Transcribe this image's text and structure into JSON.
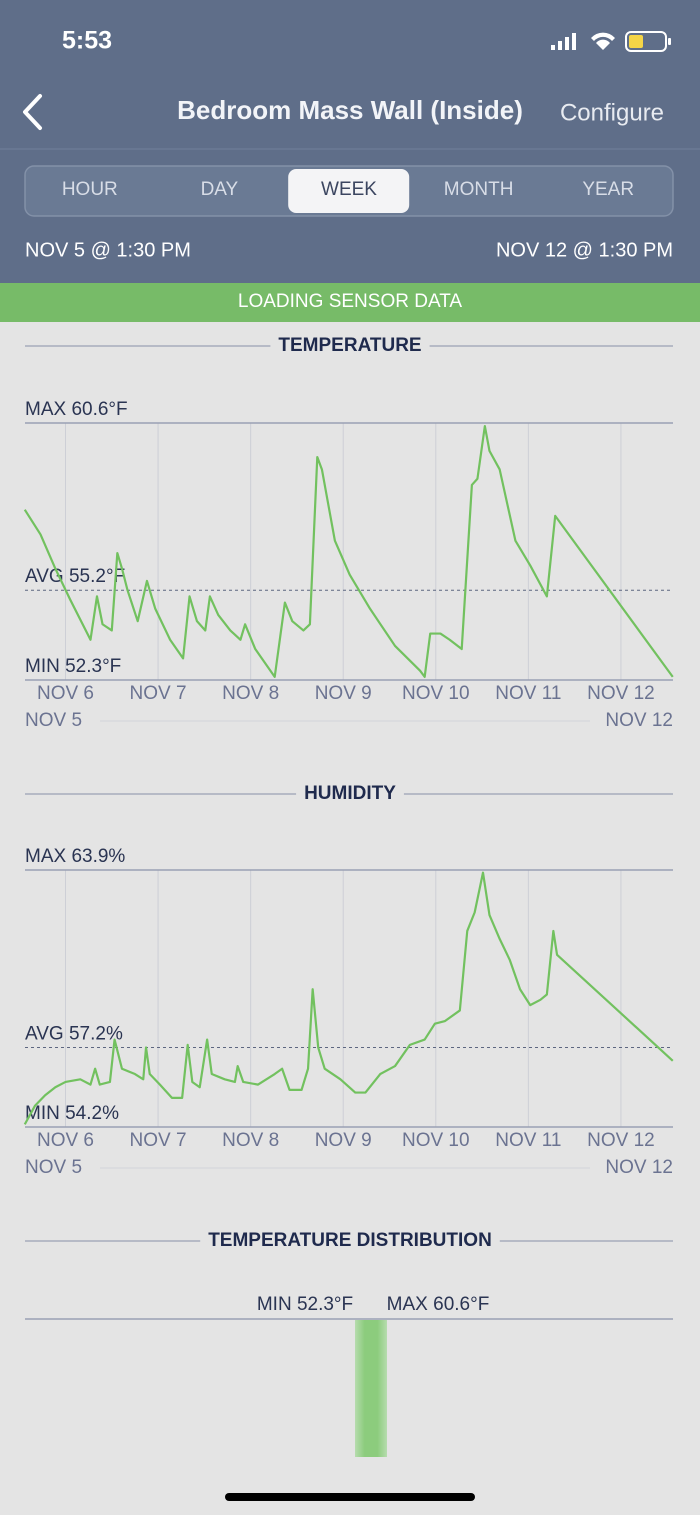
{
  "status_bar": {
    "time": "5:53"
  },
  "header": {
    "title": "Bedroom Mass Wall (Inside)",
    "action": "Configure"
  },
  "tabs": [
    "HOUR",
    "DAY",
    "WEEK",
    "MONTH",
    "YEAR"
  ],
  "selected_tab": 2,
  "range": {
    "start": "NOV 5 @ 1:30 PM",
    "end": "NOV 12 @ 1:30 PM"
  },
  "banner": "LOADING SENSOR DATA",
  "chart_data": [
    {
      "type": "line",
      "title": "TEMPERATURE",
      "color": "#72c15f",
      "x": [
        5.56,
        5.73,
        5.89,
        6.05,
        6.27,
        6.34,
        6.4,
        6.5,
        6.56,
        6.61,
        6.67,
        6.78,
        6.88,
        6.97,
        7.13,
        7.27,
        7.34,
        7.42,
        7.51,
        7.56,
        7.65,
        7.78,
        7.89,
        7.94,
        8.05,
        8.26,
        8.37,
        8.45,
        8.57,
        8.64,
        8.72,
        8.77,
        8.91,
        9.07,
        9.29,
        9.56,
        9.83,
        9.88,
        9.94,
        10.05,
        10.15,
        10.28,
        10.39,
        10.45,
        10.53,
        10.58,
        10.69,
        10.86,
        11.02,
        11.2,
        11.29,
        12.56
      ],
      "values": [
        57.8,
        57.0,
        55.9,
        54.9,
        53.6,
        55.0,
        54.1,
        53.9,
        56.4,
        55.9,
        55.2,
        54.2,
        55.5,
        54.6,
        53.6,
        53.0,
        55.0,
        54.2,
        53.9,
        55.0,
        54.4,
        53.9,
        53.6,
        54.1,
        53.3,
        52.4,
        54.8,
        54.2,
        53.9,
        54.1,
        59.5,
        59.1,
        56.8,
        55.7,
        54.6,
        53.4,
        52.6,
        52.4,
        53.8,
        53.8,
        53.6,
        53.3,
        58.6,
        58.8,
        60.5,
        59.7,
        59.1,
        56.8,
        56.0,
        55.0,
        57.6,
        52.4
      ],
      "xlim": [
        5.5625,
        12.5625
      ],
      "ylim": [
        52.3,
        60.6
      ],
      "xticks": [
        {
          "value": 6,
          "label": "NOV 6"
        },
        {
          "value": 7,
          "label": "NOV 7"
        },
        {
          "value": 8,
          "label": "NOV 8"
        },
        {
          "value": 9,
          "label": "NOV 9"
        },
        {
          "value": 10,
          "label": "NOV 10"
        },
        {
          "value": 11,
          "label": "NOV 11"
        },
        {
          "value": 12,
          "label": "NOV 12"
        }
      ],
      "yticks": [
        {
          "value": 52.3,
          "label": "MIN 52.3°F"
        },
        {
          "value": 55.2,
          "label": "AVG 55.2°F"
        },
        {
          "value": 60.6,
          "label": "MAX 60.6°F"
        }
      ],
      "range_start": "NOV 5",
      "range_end": "NOV 12"
    },
    {
      "type": "line",
      "title": "HUMIDITY",
      "color": "#72c15f",
      "x": [
        5.56,
        5.67,
        5.78,
        5.89,
        6.0,
        6.16,
        6.27,
        6.32,
        6.37,
        6.48,
        6.53,
        6.61,
        6.75,
        6.84,
        6.87,
        6.91,
        7.02,
        7.15,
        7.26,
        7.32,
        7.37,
        7.45,
        7.53,
        7.58,
        7.72,
        7.83,
        7.86,
        7.92,
        8.08,
        8.26,
        8.34,
        8.42,
        8.55,
        8.62,
        8.67,
        8.73,
        8.8,
        8.97,
        9.13,
        9.24,
        9.4,
        9.56,
        9.72,
        9.88,
        9.99,
        10.1,
        10.26,
        10.34,
        10.42,
        10.51,
        10.58,
        10.69,
        10.8,
        10.91,
        11.02,
        11.13,
        11.2,
        11.27,
        11.31,
        12.56
      ],
      "values": [
        54.3,
        55.0,
        55.4,
        55.7,
        55.9,
        56.0,
        55.8,
        56.4,
        55.8,
        55.9,
        57.5,
        56.4,
        56.2,
        56.0,
        57.2,
        56.2,
        55.8,
        55.3,
        55.3,
        57.3,
        55.9,
        55.7,
        57.5,
        56.2,
        56.0,
        55.9,
        56.5,
        55.9,
        55.8,
        56.2,
        56.4,
        55.6,
        55.6,
        56.4,
        59.4,
        57.2,
        56.4,
        56.0,
        55.5,
        55.5,
        56.2,
        56.5,
        57.3,
        57.5,
        58.1,
        58.2,
        58.6,
        61.6,
        62.3,
        63.8,
        62.2,
        61.3,
        60.5,
        59.4,
        58.8,
        59.0,
        59.2,
        61.6,
        60.7,
        56.7
      ],
      "xlim": [
        5.5625,
        12.5625
      ],
      "ylim": [
        54.2,
        63.9
      ],
      "xticks": [
        {
          "value": 6,
          "label": "NOV 6"
        },
        {
          "value": 7,
          "label": "NOV 7"
        },
        {
          "value": 8,
          "label": "NOV 8"
        },
        {
          "value": 9,
          "label": "NOV 9"
        },
        {
          "value": 10,
          "label": "NOV 10"
        },
        {
          "value": 11,
          "label": "NOV 11"
        },
        {
          "value": 12,
          "label": "NOV 12"
        }
      ],
      "yticks": [
        {
          "value": 54.2,
          "label": "MIN 54.2%"
        },
        {
          "value": 57.2,
          "label": "AVG 57.2%"
        },
        {
          "value": 63.9,
          "label": "MAX 63.9%"
        }
      ],
      "range_start": "NOV 5",
      "range_end": "NOV 12"
    }
  ],
  "distribution": {
    "title": "TEMPERATURE DISTRIBUTION",
    "min_label": "MIN 52.3°F",
    "max_label": "MAX 60.6°F"
  }
}
